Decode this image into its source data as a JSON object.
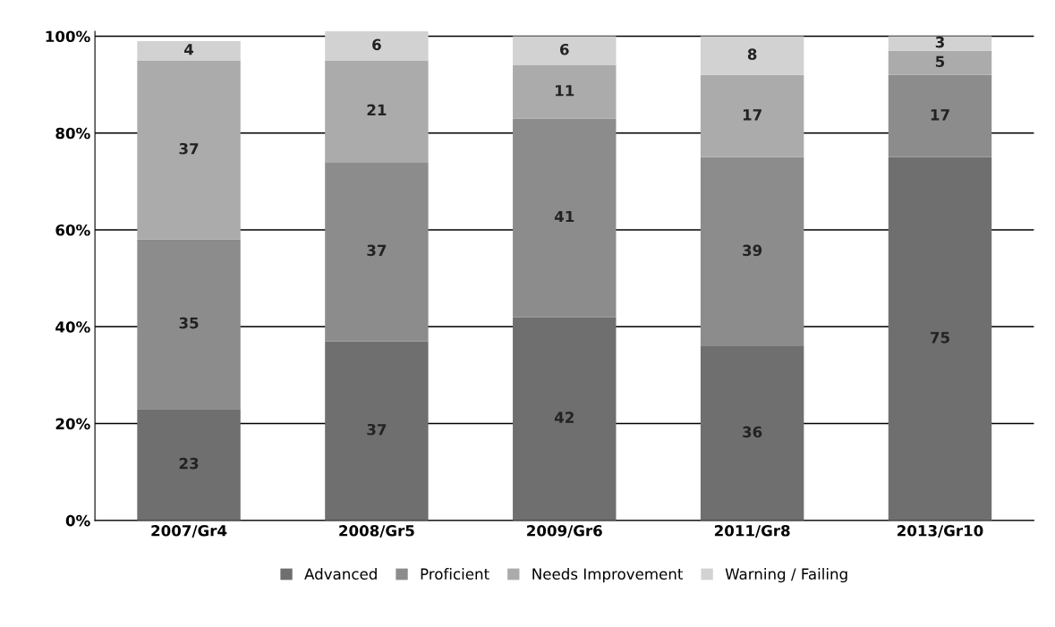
{
  "chart_data": {
    "type": "bar",
    "stacked": true,
    "categories": [
      "2007/Gr4",
      "2008/Gr5",
      "2009/Gr6",
      "2011/Gr8",
      "2013/Gr10"
    ],
    "series": [
      {
        "name": "Advanced",
        "color": "#6f6f6f",
        "values": [
          23,
          37,
          42,
          36,
          75
        ]
      },
      {
        "name": "Proficient",
        "color": "#8c8c8c",
        "values": [
          35,
          37,
          41,
          39,
          17
        ]
      },
      {
        "name": "Needs Improvement",
        "color": "#ababab",
        "values": [
          37,
          21,
          11,
          17,
          5
        ]
      },
      {
        "name": "Warning / Failing",
        "color": "#d2d2d2",
        "values": [
          4,
          6,
          6,
          8,
          3
        ]
      }
    ],
    "ylim": [
      0,
      101
    ],
    "yticks": [
      {
        "value": 0,
        "label": "0%"
      },
      {
        "value": 20,
        "label": "20%"
      },
      {
        "value": 40,
        "label": "40%"
      },
      {
        "value": 60,
        "label": "60%"
      },
      {
        "value": 80,
        "label": "80%"
      },
      {
        "value": 100,
        "label": "100%"
      }
    ],
    "grid": "y",
    "legend": "bottom",
    "data_labels": true
  }
}
